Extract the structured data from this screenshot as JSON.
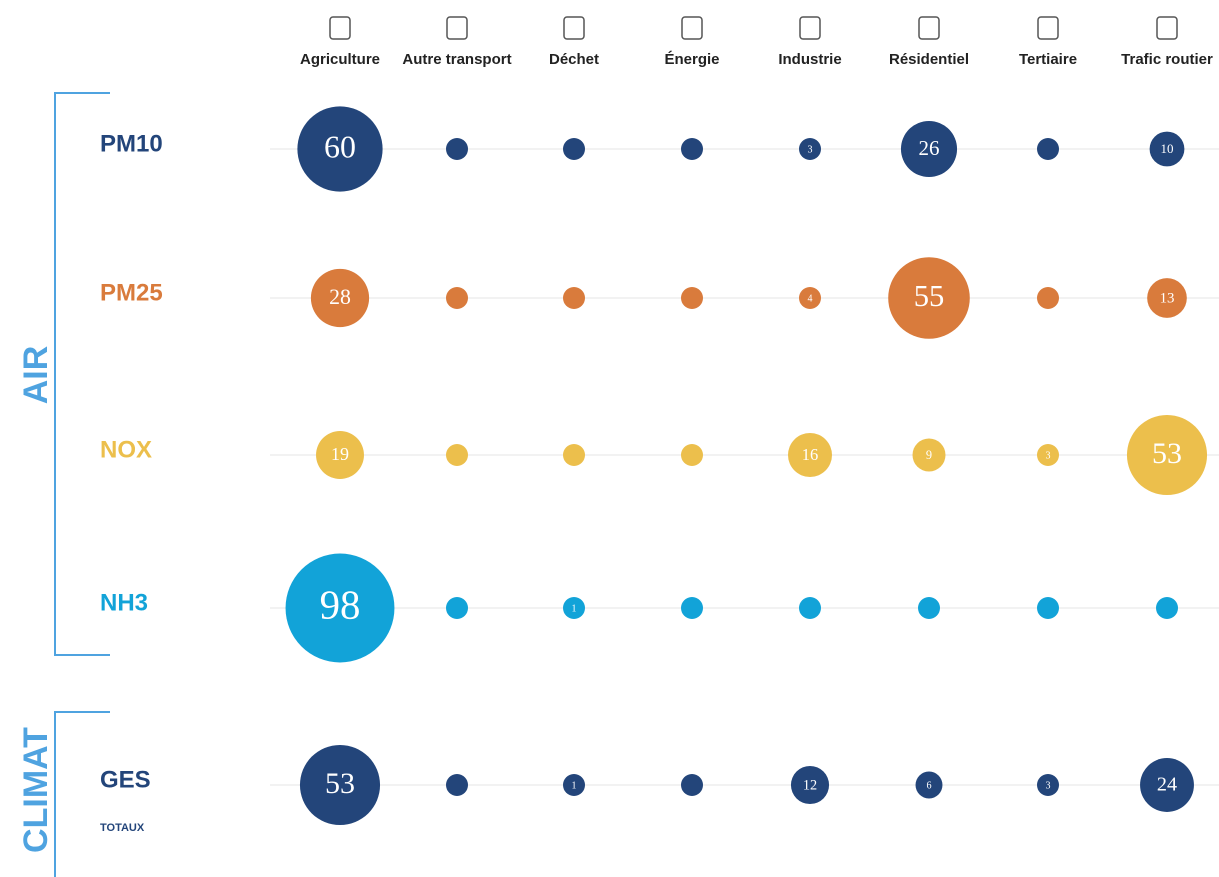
{
  "chart_data": {
    "type": "bubble",
    "categories": [
      "Agriculture",
      "Autre transport",
      "Déchet",
      "Énergie",
      "Industrie",
      "Résidentiel",
      "Tertiaire",
      "Trafic routier"
    ],
    "series": [
      {
        "name": "PM10",
        "color": "#23457a",
        "values": [
          60,
          0,
          0,
          0,
          3,
          26,
          0,
          10
        ]
      },
      {
        "name": "PM25",
        "color": "#d97b3c",
        "values": [
          28,
          0,
          0,
          0,
          4,
          55,
          0,
          13
        ]
      },
      {
        "name": "NOX",
        "color": "#ecbf4c",
        "values": [
          19,
          0,
          0,
          0,
          16,
          9,
          3,
          53
        ]
      },
      {
        "name": "NH3",
        "color": "#12a3d8",
        "values": [
          98,
          0,
          1,
          0,
          0,
          0,
          0,
          0
        ]
      },
      {
        "name": "GES",
        "subtitle": "TOTAUX",
        "color": "#23457a",
        "values": [
          53,
          0,
          1,
          0,
          12,
          6,
          3,
          24
        ]
      }
    ],
    "groups": [
      {
        "label": "AIR"
      },
      {
        "label": "CLIMAT"
      }
    ]
  }
}
